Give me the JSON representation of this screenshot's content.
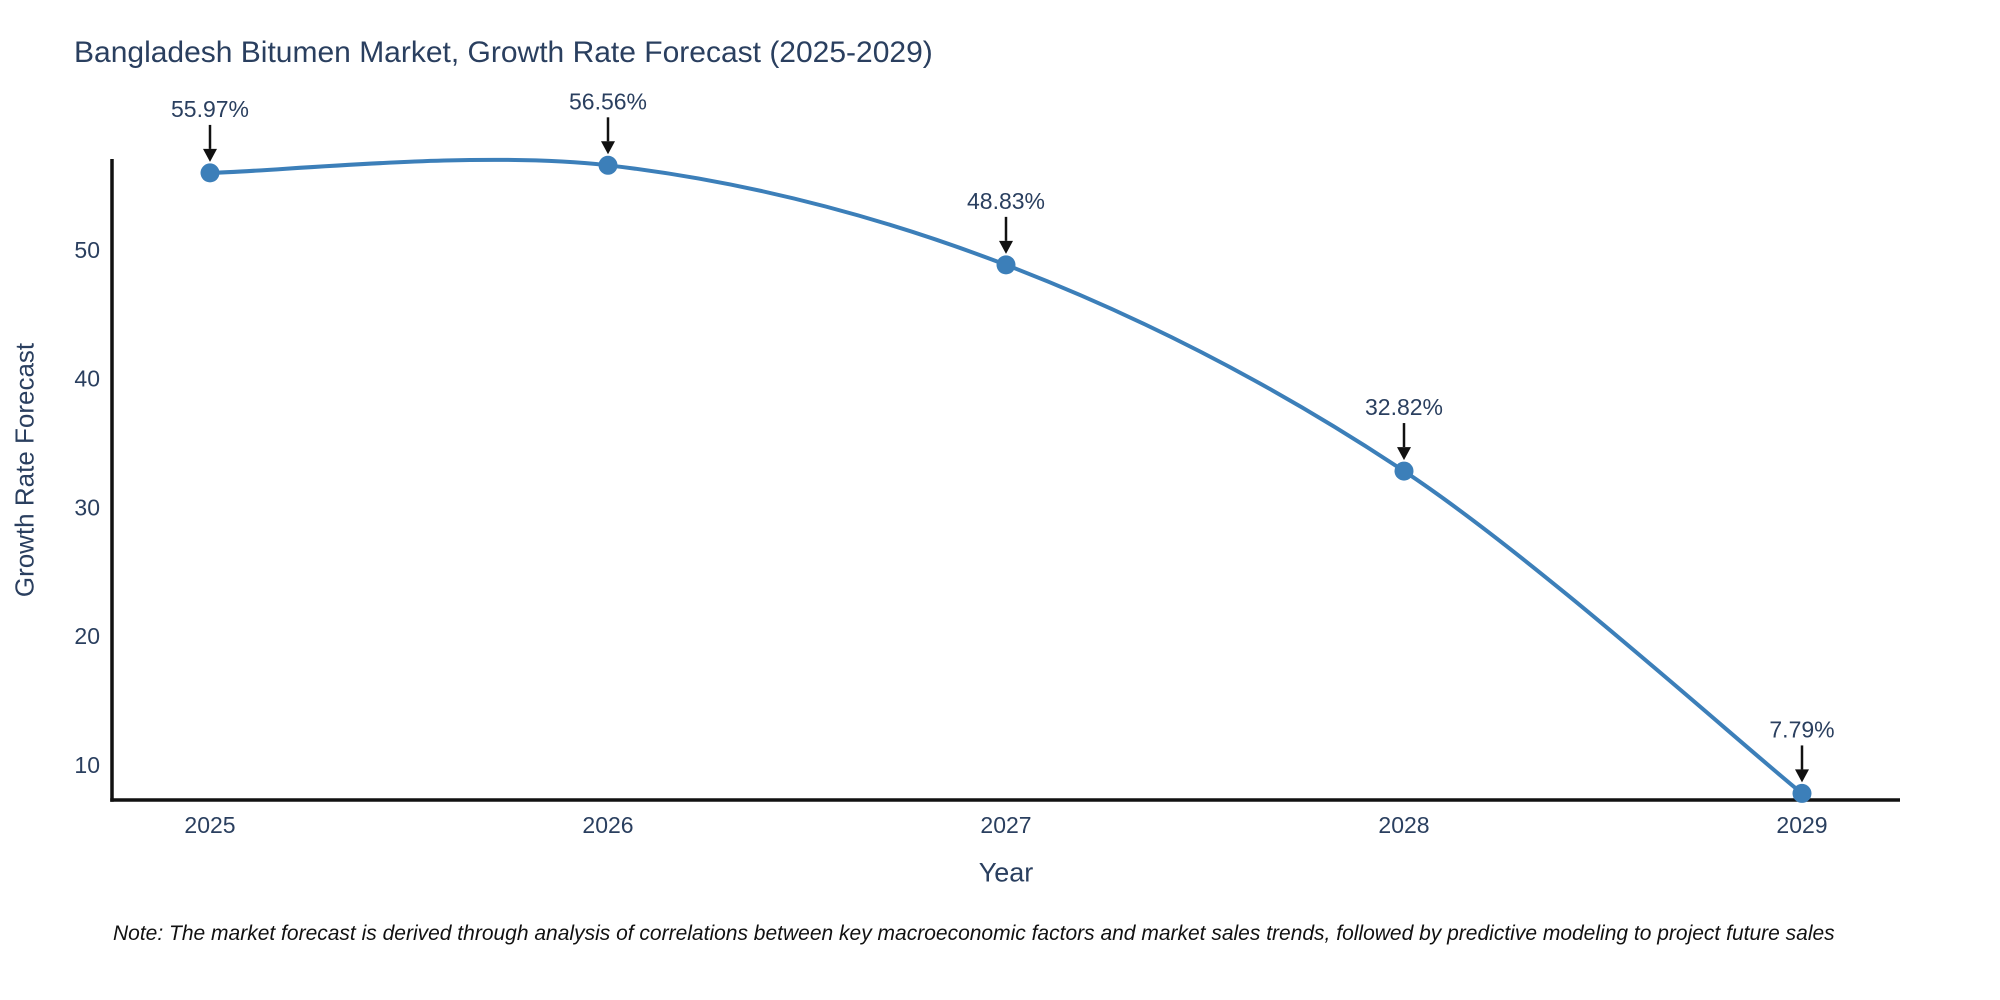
{
  "title": "Bangladesh Bitumen Market, Growth Rate Forecast (2025-2029)",
  "note": "Note: The market forecast is derived through analysis of correlations between key macroeconomic factors and market sales trends, followed by predictive modeling to project future sales",
  "colors": {
    "accent_line": "#3c7fb9",
    "marker": "#3c7fb9",
    "axis_line": "#111111",
    "axis_text": "#2a3f5f",
    "annotation_text": "#2a3f5f",
    "annotation_arrow": "#111111",
    "background": "#ffffff"
  },
  "chart_data": {
    "type": "line",
    "title": "Bangladesh Bitumen Market, Growth Rate Forecast (2025-2029)",
    "xlabel": "Year",
    "ylabel": "Growth Rate Forecast",
    "categories": [
      "2025",
      "2026",
      "2027",
      "2028",
      "2029"
    ],
    "values": [
      55.97,
      56.56,
      48.83,
      32.82,
      7.79
    ],
    "point_labels": [
      "55.97%",
      "56.56%",
      "48.83%",
      "32.82%",
      "7.79%"
    ],
    "y_ticks": [
      10,
      20,
      30,
      40,
      50
    ],
    "ylim": [
      7.28,
      57.05
    ],
    "line_shape": "spline",
    "grid": false,
    "legend_position": "none",
    "annotations_have_arrows": true
  }
}
